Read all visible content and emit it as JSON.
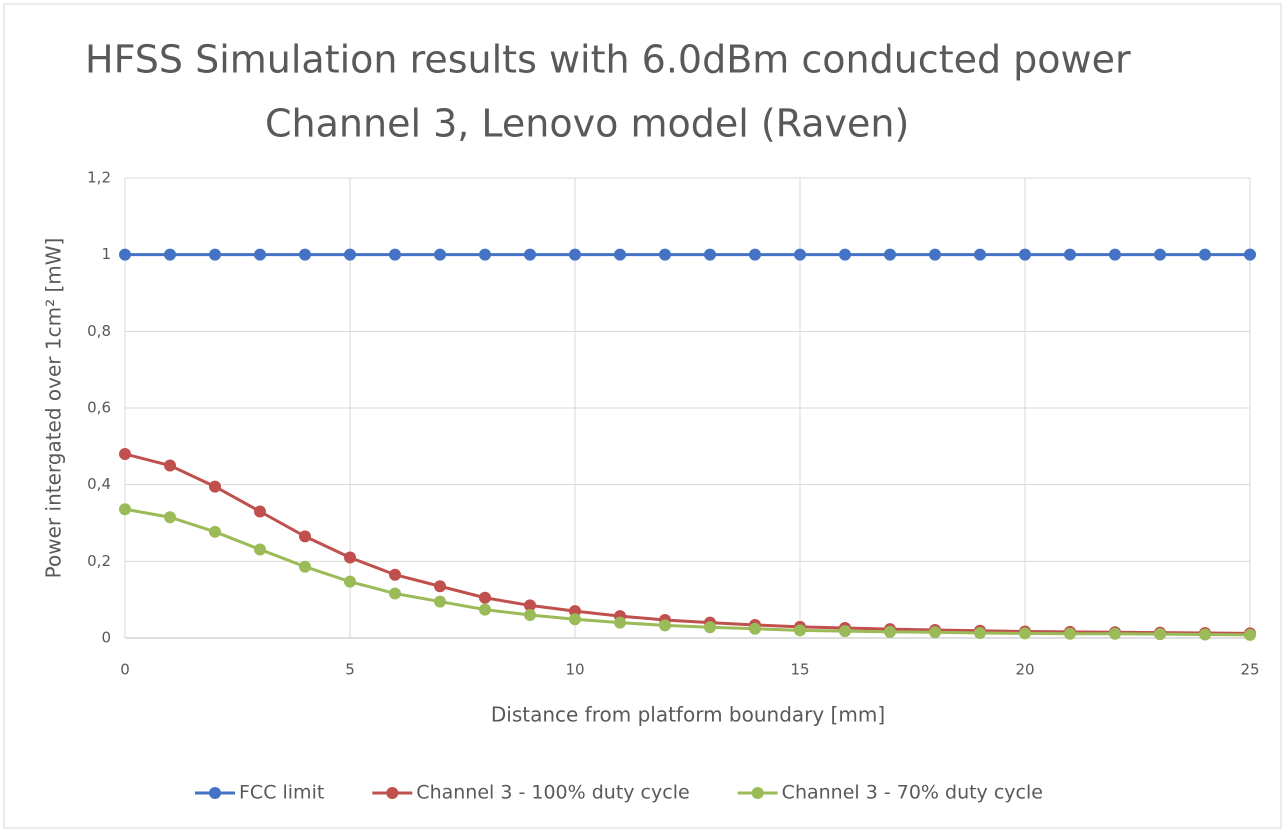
{
  "chart_data": {
    "type": "line",
    "title": "HFSS Simulation results with 6.0dBm conducted power",
    "subtitle": "Channel 3, Lenovo model (Raven)",
    "x_label": "Distance from platform boundary [mm]",
    "y_label": "Power intergated over 1cm² [mW]",
    "x": [
      0,
      1,
      2,
      3,
      4,
      5,
      6,
      7,
      8,
      9,
      10,
      11,
      12,
      13,
      14,
      15,
      16,
      17,
      18,
      19,
      20,
      21,
      22,
      23,
      24,
      25
    ],
    "series": [
      {
        "name": "FCC limit",
        "color": "#4472c4",
        "values": [
          1,
          1,
          1,
          1,
          1,
          1,
          1,
          1,
          1,
          1,
          1,
          1,
          1,
          1,
          1,
          1,
          1,
          1,
          1,
          1,
          1,
          1,
          1,
          1,
          1,
          1
        ]
      },
      {
        "name": "Channel 3 - 100% duty cycle",
        "color": "#c0504d",
        "values": [
          0.48,
          0.45,
          0.395,
          0.33,
          0.265,
          0.21,
          0.165,
          0.135,
          0.105,
          0.085,
          0.07,
          0.057,
          0.047,
          0.04,
          0.034,
          0.029,
          0.026,
          0.023,
          0.021,
          0.019,
          0.017,
          0.016,
          0.015,
          0.014,
          0.013,
          0.012
        ]
      },
      {
        "name": "Channel 3 - 70% duty cycle",
        "color": "#9bbb59",
        "values": [
          0.336,
          0.315,
          0.277,
          0.231,
          0.186,
          0.147,
          0.116,
          0.095,
          0.074,
          0.06,
          0.049,
          0.04,
          0.033,
          0.028,
          0.024,
          0.02,
          0.018,
          0.016,
          0.015,
          0.013,
          0.012,
          0.011,
          0.011,
          0.01,
          0.009,
          0.008
        ]
      }
    ],
    "xlim": [
      0,
      25
    ],
    "xticks": [
      0,
      5,
      10,
      15,
      20,
      25
    ],
    "ylim": [
      0,
      1.2
    ],
    "yticks": [
      0,
      {
        "value": 0.2,
        "label": "0,2"
      },
      {
        "value": 0.4,
        "label": "0,4"
      },
      {
        "value": 0.6,
        "label": "0,6"
      },
      {
        "value": 0.8,
        "label": "0,8"
      },
      1,
      {
        "value": 1.2,
        "label": "1,2"
      }
    ],
    "grid": true,
    "legend": "bottom"
  }
}
